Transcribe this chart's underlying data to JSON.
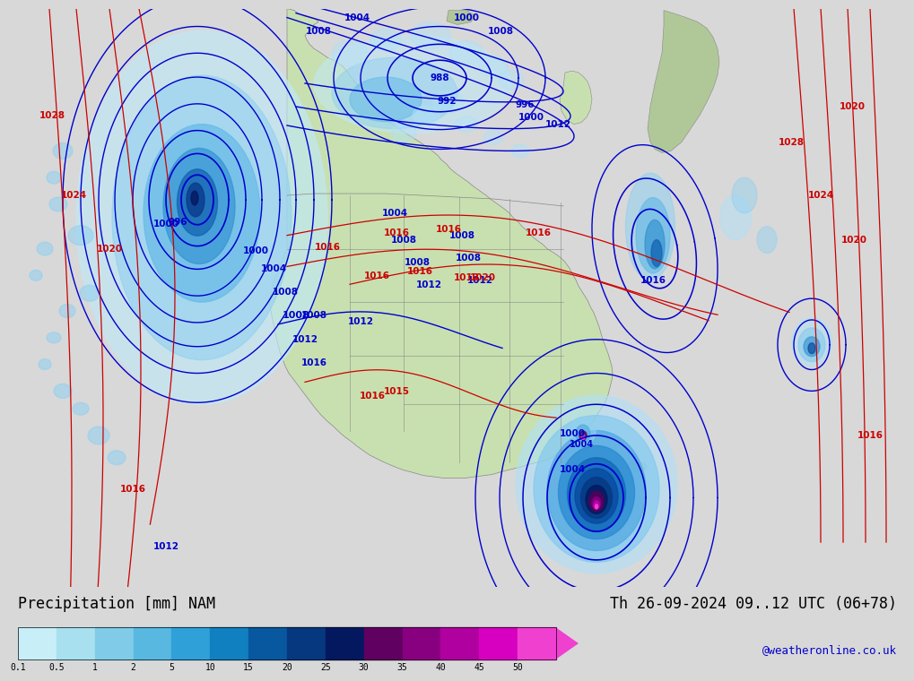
{
  "title_left": "Precipitation [mm] NAM",
  "title_right": "Th 26-09-2024 09..12 UTC (06+78)",
  "credit": "@weatheronline.co.uk",
  "colorbar_values": [
    "0.1",
    "0.5",
    "1",
    "2",
    "5",
    "10",
    "15",
    "20",
    "25",
    "30",
    "35",
    "40",
    "45",
    "50"
  ],
  "colorbar_colors": [
    "#c8eef8",
    "#a8e0f0",
    "#80cce8",
    "#58b8e0",
    "#30a0d8",
    "#1080c0",
    "#0858a0",
    "#063880",
    "#041860",
    "#600060",
    "#880080",
    "#b000a0",
    "#d800c0",
    "#f040d0"
  ],
  "ocean_color": "#d8d8d8",
  "land_color": "#c8e0b0",
  "land_color_dark": "#b0c898",
  "bottom_bar_color": "#ffffff",
  "font_color": "#000000",
  "blue_contour_color": "#0000cc",
  "red_contour_color": "#cc0000",
  "gray_border_color": "#888888",
  "title_fontsize": 12,
  "credit_fontsize": 9,
  "label_fontsize": 7.5
}
